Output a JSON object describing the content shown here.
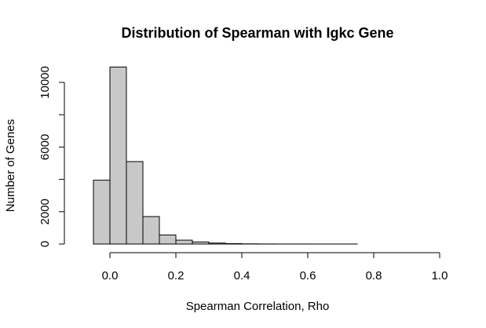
{
  "chart_data": {
    "type": "bar",
    "title": "Distribution of Spearman with Igkc Gene",
    "xlabel": "Spearman Correlation, Rho",
    "ylabel": "Number of Genes",
    "bar_color": "#c8c8c8",
    "edge_color": "#000000",
    "bin_width": 0.05,
    "bin_starts": [
      -0.1,
      -0.05,
      0.0,
      0.05,
      0.1,
      0.15,
      0.2,
      0.25,
      0.3,
      0.35,
      0.4,
      0.45,
      0.5,
      0.55,
      0.6,
      0.65,
      0.7,
      0.75,
      0.8,
      0.85,
      0.9,
      0.95
    ],
    "values": [
      0,
      3950,
      10950,
      5100,
      1700,
      560,
      240,
      130,
      60,
      25,
      10,
      5,
      3,
      2,
      1,
      1,
      1,
      0,
      0,
      0,
      0,
      0
    ],
    "xlim": [
      -0.1,
      1.0
    ],
    "ylim": [
      0,
      11000
    ],
    "x_ticks": [
      {
        "value": 0.0,
        "label": "0.0"
      },
      {
        "value": 0.2,
        "label": "0.2"
      },
      {
        "value": 0.4,
        "label": "0.4"
      },
      {
        "value": 0.6,
        "label": "0.6"
      },
      {
        "value": 0.8,
        "label": "0.8"
      },
      {
        "value": 1.0,
        "label": "1.0"
      }
    ],
    "y_ticks": [
      {
        "value": 0,
        "label": "0"
      },
      {
        "value": 2000,
        "label": "2000"
      },
      {
        "value": 4000,
        "label": ""
      },
      {
        "value": 6000,
        "label": "6000"
      },
      {
        "value": 8000,
        "label": ""
      },
      {
        "value": 10000,
        "label": "10000"
      }
    ],
    "grid": false,
    "legend": "none"
  }
}
